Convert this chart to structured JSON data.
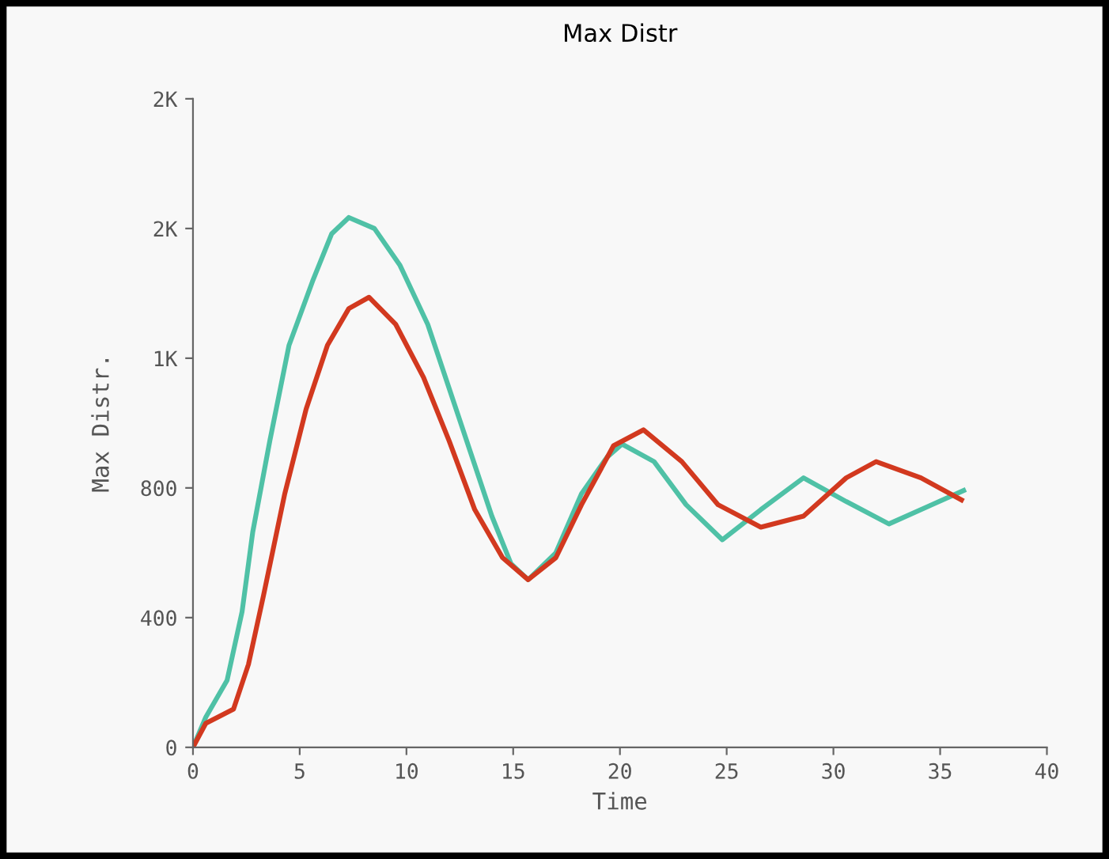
{
  "chart_data": {
    "type": "line",
    "title": "Max Distr",
    "xlabel": "Time",
    "ylabel": "Max Distr.",
    "xlim": [
      0,
      40
    ],
    "xticks": [
      0,
      5,
      10,
      15,
      20,
      25,
      30,
      35,
      40
    ],
    "ylim": [
      0,
      2000
    ],
    "yticks": [
      0,
      400,
      800,
      {
        "value": 1200,
        "label": "1K"
      },
      {
        "value": 1600,
        "label": "2K"
      },
      {
        "value": 2000,
        "label": "2K"
      }
    ],
    "grid": false,
    "legend": false,
    "marker": "none",
    "line_style": "solid",
    "series": [
      {
        "color": "#4fc1a6",
        "x": [
          0,
          0.6,
          1.6,
          2.3,
          2.8,
          3.6,
          4.5,
          5.6,
          6.5,
          7.3,
          8.5,
          9.7,
          11.0,
          12.0,
          13.0,
          14.0,
          14.9,
          15.7,
          17.0,
          18.2,
          19.4,
          20.1,
          21.6,
          23.1,
          24.8,
          26.6,
          28.6,
          30.6,
          32.6,
          34.6,
          36.1
        ],
        "values": [
          0,
          93,
          207,
          418,
          664,
          945,
          1240,
          1437,
          1584,
          1634,
          1600,
          1486,
          1304,
          1107,
          910,
          713,
          566,
          517,
          600,
          782,
          895,
          935,
          881,
          748,
          640,
          733,
          831,
          758,
          689,
          748,
          792
        ]
      },
      {
        "color": "#d2391f",
        "x": [
          0,
          0.6,
          1.9,
          2.6,
          3.3,
          4.3,
          5.3,
          6.3,
          7.3,
          8.25,
          9.5,
          10.8,
          12.0,
          13.2,
          14.5,
          15.7,
          17.0,
          18.2,
          19.7,
          21.1,
          22.9,
          24.6,
          26.6,
          28.6,
          30.6,
          32.0,
          34.1,
          36.0
        ],
        "values": [
          0,
          74,
          118,
          256,
          467,
          782,
          1043,
          1240,
          1353,
          1388,
          1304,
          1141,
          945,
          733,
          585,
          517,
          585,
          748,
          930,
          979,
          881,
          748,
          679,
          713,
          831,
          881,
          831,
          763
        ]
      }
    ]
  }
}
